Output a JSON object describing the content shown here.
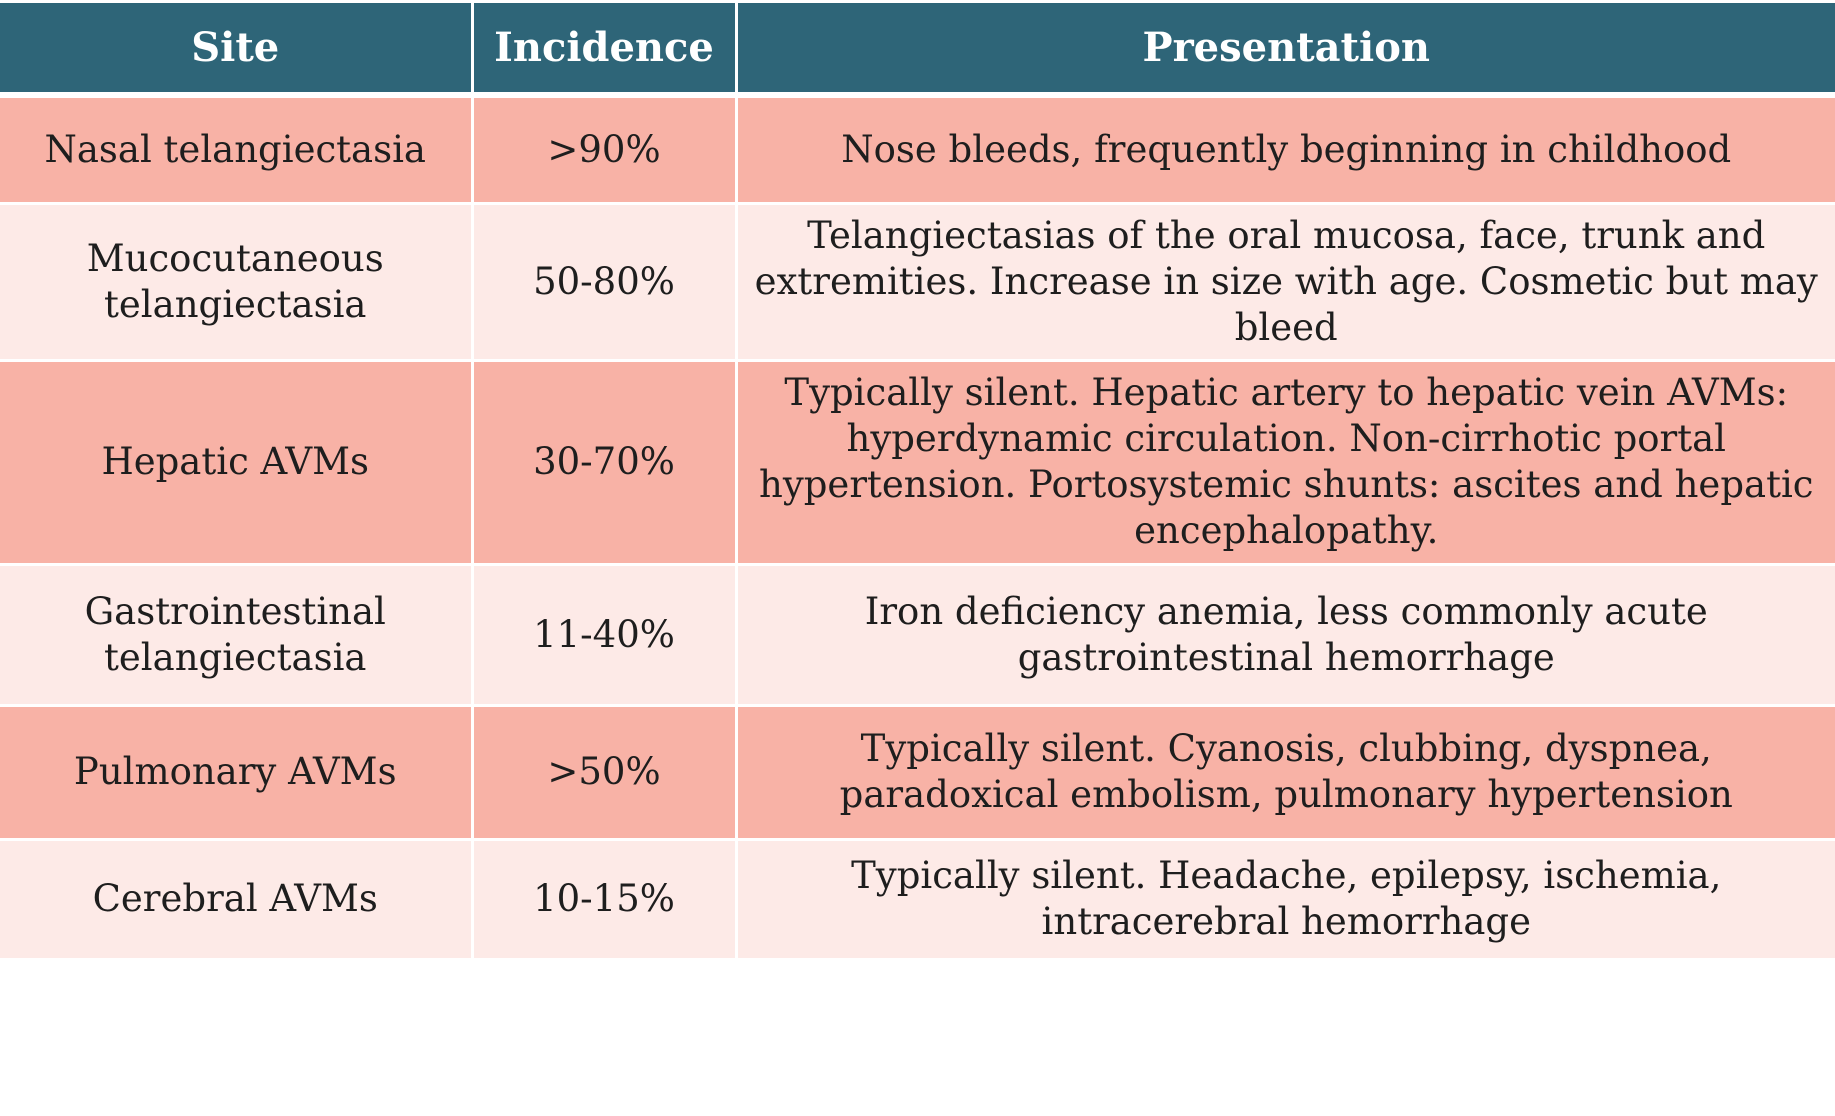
{
  "table": {
    "headers": [
      "Site",
      "Incidence",
      "Presentation"
    ],
    "rows": [
      {
        "site": "Nasal telangiectasia",
        "incidence": ">90%",
        "presentation": "Nose bleeds, frequently beginning in childhood"
      },
      {
        "site": "Mucocutaneous telangiectasia",
        "incidence": "50-80%",
        "presentation": "Telangiectasias of the oral mucosa, face, trunk and extremities. Increase in size with age. Cosmetic but may bleed"
      },
      {
        "site": "Hepatic AVMs",
        "incidence": "30-70%",
        "presentation": "Typically silent. Hepatic artery to hepatic vein AVMs: hyperdynamic circulation. Non-cirrhotic portal hypertension. Portosystemic shunts: ascites and hepatic encephalopathy."
      },
      {
        "site": "Gastrointestinal telangiectasia",
        "incidence": "11-40%",
        "presentation": "Iron deficiency anemia, less commonly acute gastrointestinal hemorrhage"
      },
      {
        "site": "Pulmonary AVMs",
        "incidence": ">50%",
        "presentation": "Typically silent. Cyanosis, clubbing, dyspnea, paradoxical embolism, pulmonary hypertension"
      },
      {
        "site": "Cerebral AVMs",
        "incidence": "10-15%",
        "presentation": "Typically silent. Headache, epilepsy, ischemia, intracerebral hemorrhage"
      }
    ]
  },
  "colors": {
    "header_bg": "#2e6578",
    "row_dark": "#f8b2a6",
    "row_light": "#fdeae7"
  }
}
